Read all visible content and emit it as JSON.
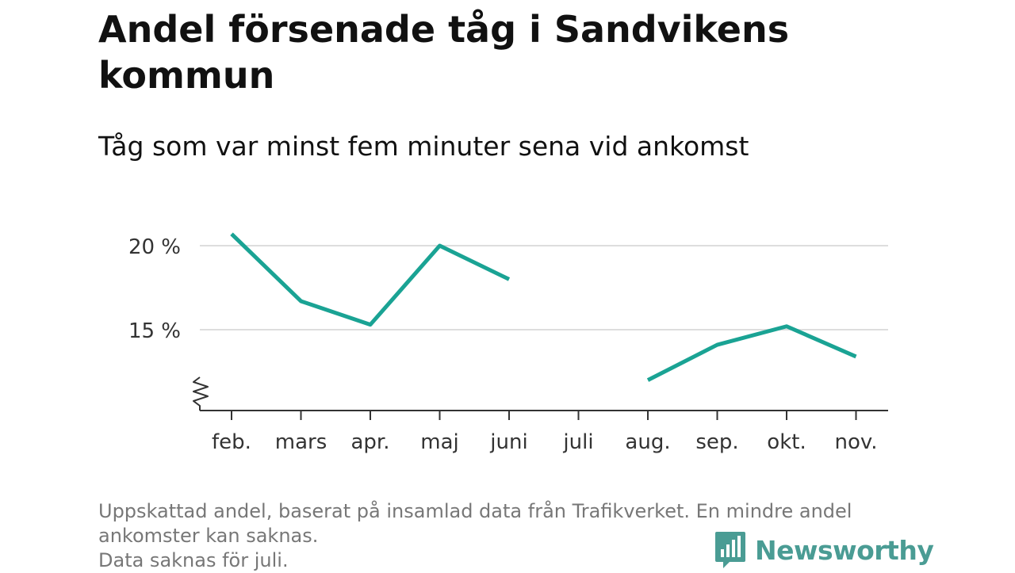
{
  "title": "Andel försenade tåg i Sandvikens kommun",
  "subtitle": "Tåg som var minst fem minuter sena vid ankomst",
  "footer": {
    "line1": "Uppskattad andel, baserat på insamlad data från Trafikverket. En mindre andel",
    "line2": "ankomster kan saknas.",
    "line3": "Data saknas för juli."
  },
  "logo": {
    "text": "Newsworthy",
    "icon": "bar-chart-speech-bubble-icon",
    "color": "#4a9c94"
  },
  "chart_data": {
    "type": "line",
    "categories": [
      "feb.",
      "mars",
      "apr.",
      "maj",
      "juni",
      "juli",
      "aug.",
      "sep.",
      "okt.",
      "nov."
    ],
    "series": [
      {
        "values": [
          20.7,
          16.7,
          15.3,
          20.0,
          18.0,
          null,
          12.0,
          14.1,
          15.2,
          13.4
        ]
      }
    ],
    "yticks": [
      {
        "value": 15,
        "label": "15 %"
      },
      {
        "value": 20,
        "label": "20 %"
      }
    ],
    "ylim": [
      10,
      21
    ],
    "y_axis_break": true,
    "grid": "horizontal",
    "line_color": "#1aa394",
    "grid_color": "#dddddd",
    "axis_color": "#333333",
    "xlabel": "",
    "ylabel": ""
  }
}
